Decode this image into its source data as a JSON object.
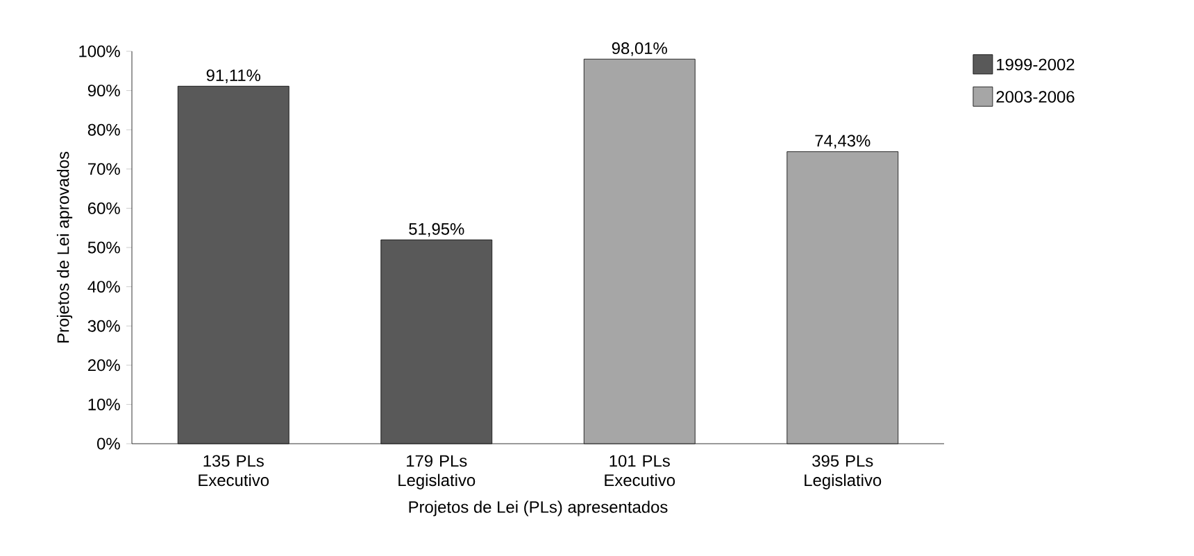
{
  "chart_data": {
    "type": "bar",
    "xlabel": "Projetos de Lei (PLs) apresentados",
    "ylabel": "Projetos de Lei aprovados",
    "categories": [
      "135 PLs Executivo",
      "179 PLs Legislativo",
      "101 PLs Executivo",
      "395 PLs Legislativo"
    ],
    "series": [
      {
        "name": "1999-2002",
        "color": "#595959",
        "values": [
          91.11,
          51.95,
          null,
          null
        ],
        "value_labels": [
          "91,11%",
          "51,95%",
          null,
          null
        ]
      },
      {
        "name": "2003-2006",
        "color": "#a6a6a6",
        "values": [
          null,
          null,
          98.01,
          74.43
        ],
        "value_labels": [
          null,
          null,
          "98,01%",
          "74,43%"
        ]
      }
    ],
    "ylim": [
      0,
      100
    ],
    "yticks": [
      {
        "value": 0,
        "label": "0%"
      },
      {
        "value": 10,
        "label": "10%"
      },
      {
        "value": 20,
        "label": "20%"
      },
      {
        "value": 30,
        "label": "30%"
      },
      {
        "value": 40,
        "label": "40%"
      },
      {
        "value": 50,
        "label": "50%"
      },
      {
        "value": 60,
        "label": "60%"
      },
      {
        "value": 70,
        "label": "70%"
      },
      {
        "value": 80,
        "label": "80%"
      },
      {
        "value": 90,
        "label": "90%"
      },
      {
        "value": 100,
        "label": "100%"
      }
    ],
    "legend": "top right",
    "grid": false
  }
}
